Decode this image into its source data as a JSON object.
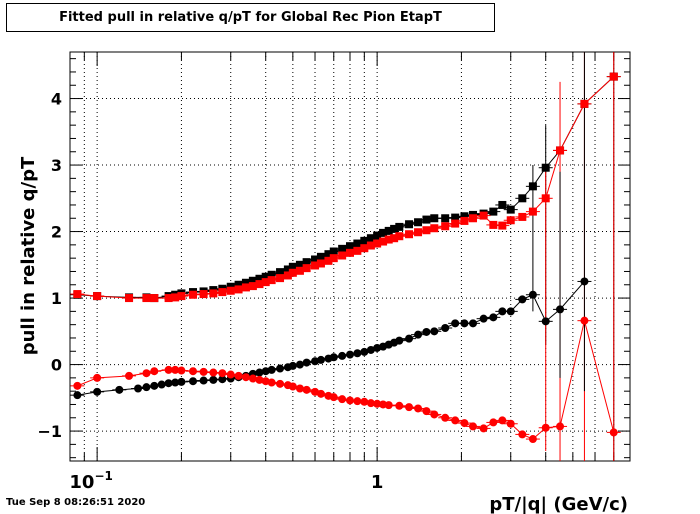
{
  "chart_data": {
    "type": "scatter",
    "title": "Fitted pull in relative q/pT for Global Rec Pion EtapT",
    "xlabel": "pT/|q| (GeV/c)",
    "ylabel": "pull in relative q/pT",
    "xscale": "log",
    "xlim": [
      0.08,
      8.0
    ],
    "ylim": [
      -1.45,
      4.7
    ],
    "grid": true,
    "x_tick_labels": [
      {
        "value": 0.1,
        "base": "10",
        "exp": "−1"
      },
      {
        "value": 1,
        "base": "1",
        "exp": ""
      }
    ],
    "y_ticks": [
      -1,
      0,
      1,
      2,
      3,
      4
    ],
    "y_tick_labels": [
      "−1",
      "0",
      "1",
      "2",
      "3",
      "4"
    ],
    "series": [
      {
        "color": "#000000",
        "marker": "square",
        "points": [
          [
            0.085,
            1.05
          ],
          [
            0.1,
            1.03
          ],
          [
            0.13,
            1.01
          ],
          [
            0.15,
            1.01
          ],
          [
            0.16,
            1.0
          ],
          [
            0.18,
            1.03
          ],
          [
            0.19,
            1.05
          ],
          [
            0.2,
            1.07
          ],
          [
            0.22,
            1.09
          ],
          [
            0.24,
            1.1
          ],
          [
            0.26,
            1.12
          ],
          [
            0.28,
            1.14
          ],
          [
            0.3,
            1.17
          ],
          [
            0.32,
            1.2
          ],
          [
            0.34,
            1.23
          ],
          [
            0.36,
            1.26
          ],
          [
            0.38,
            1.29
          ],
          [
            0.4,
            1.32
          ],
          [
            0.42,
            1.35
          ],
          [
            0.45,
            1.39
          ],
          [
            0.48,
            1.43
          ],
          [
            0.5,
            1.47
          ],
          [
            0.53,
            1.5
          ],
          [
            0.56,
            1.54
          ],
          [
            0.6,
            1.58
          ],
          [
            0.63,
            1.62
          ],
          [
            0.67,
            1.66
          ],
          [
            0.7,
            1.7
          ],
          [
            0.75,
            1.74
          ],
          [
            0.8,
            1.78
          ],
          [
            0.85,
            1.82
          ],
          [
            0.9,
            1.86
          ],
          [
            0.95,
            1.9
          ],
          [
            1.0,
            1.94
          ],
          [
            1.05,
            1.98
          ],
          [
            1.1,
            2.01
          ],
          [
            1.15,
            2.04
          ],
          [
            1.2,
            2.07
          ],
          [
            1.3,
            2.11
          ],
          [
            1.4,
            2.14
          ],
          [
            1.5,
            2.18
          ],
          [
            1.6,
            2.2
          ],
          [
            1.75,
            2.2
          ],
          [
            1.9,
            2.21
          ],
          [
            2.05,
            2.23
          ],
          [
            2.2,
            2.25
          ],
          [
            2.4,
            2.27
          ],
          [
            2.6,
            2.3
          ],
          [
            2.8,
            2.4
          ],
          [
            3.0,
            2.33
          ],
          [
            3.3,
            2.5
          ],
          [
            3.6,
            2.68
          ],
          [
            4.0,
            2.96
          ],
          [
            4.5,
            3.22
          ],
          [
            5.5,
            3.92
          ],
          [
            7.0,
            4.33
          ]
        ]
      },
      {
        "color": "#ff0000",
        "marker": "square",
        "points": [
          [
            0.085,
            1.06
          ],
          [
            0.1,
            1.03
          ],
          [
            0.13,
            1.0
          ],
          [
            0.15,
            1.0
          ],
          [
            0.16,
            1.0
          ],
          [
            0.18,
            1.0
          ],
          [
            0.19,
            1.01
          ],
          [
            0.2,
            1.03
          ],
          [
            0.22,
            1.05
          ],
          [
            0.24,
            1.06
          ],
          [
            0.26,
            1.07
          ],
          [
            0.28,
            1.09
          ],
          [
            0.3,
            1.11
          ],
          [
            0.32,
            1.13
          ],
          [
            0.34,
            1.16
          ],
          [
            0.36,
            1.18
          ],
          [
            0.38,
            1.21
          ],
          [
            0.4,
            1.24
          ],
          [
            0.42,
            1.27
          ],
          [
            0.45,
            1.3
          ],
          [
            0.48,
            1.34
          ],
          [
            0.5,
            1.38
          ],
          [
            0.53,
            1.41
          ],
          [
            0.56,
            1.45
          ],
          [
            0.6,
            1.49
          ],
          [
            0.63,
            1.52
          ],
          [
            0.67,
            1.56
          ],
          [
            0.7,
            1.6
          ],
          [
            0.75,
            1.64
          ],
          [
            0.8,
            1.68
          ],
          [
            0.85,
            1.71
          ],
          [
            0.9,
            1.75
          ],
          [
            0.95,
            1.79
          ],
          [
            1.0,
            1.82
          ],
          [
            1.05,
            1.85
          ],
          [
            1.1,
            1.88
          ],
          [
            1.15,
            1.9
          ],
          [
            1.2,
            1.93
          ],
          [
            1.3,
            1.96
          ],
          [
            1.4,
            1.99
          ],
          [
            1.5,
            2.02
          ],
          [
            1.6,
            2.05
          ],
          [
            1.75,
            2.08
          ],
          [
            1.9,
            2.12
          ],
          [
            2.05,
            2.16
          ],
          [
            2.2,
            2.2
          ],
          [
            2.4,
            2.24
          ],
          [
            2.6,
            2.1
          ],
          [
            2.8,
            2.09
          ],
          [
            3.0,
            2.17
          ],
          [
            3.3,
            2.22
          ],
          [
            3.6,
            2.3
          ],
          [
            4.0,
            2.5
          ],
          [
            4.5,
            3.22
          ],
          [
            5.5,
            3.92
          ],
          [
            7.0,
            4.33
          ]
        ]
      },
      {
        "color": "#000000",
        "marker": "circle",
        "points": [
          [
            0.085,
            -0.46
          ],
          [
            0.1,
            -0.41
          ],
          [
            0.12,
            -0.38
          ],
          [
            0.14,
            -0.36
          ],
          [
            0.15,
            -0.34
          ],
          [
            0.16,
            -0.32
          ],
          [
            0.17,
            -0.3
          ],
          [
            0.18,
            -0.28
          ],
          [
            0.19,
            -0.27
          ],
          [
            0.2,
            -0.26
          ],
          [
            0.22,
            -0.25
          ],
          [
            0.24,
            -0.24
          ],
          [
            0.26,
            -0.23
          ],
          [
            0.28,
            -0.22
          ],
          [
            0.3,
            -0.21
          ],
          [
            0.32,
            -0.19
          ],
          [
            0.34,
            -0.17
          ],
          [
            0.36,
            -0.14
          ],
          [
            0.38,
            -0.12
          ],
          [
            0.4,
            -0.1
          ],
          [
            0.42,
            -0.08
          ],
          [
            0.45,
            -0.06
          ],
          [
            0.48,
            -0.04
          ],
          [
            0.5,
            -0.02
          ],
          [
            0.53,
            0.0
          ],
          [
            0.56,
            0.03
          ],
          [
            0.6,
            0.05
          ],
          [
            0.63,
            0.07
          ],
          [
            0.67,
            0.09
          ],
          [
            0.7,
            0.11
          ],
          [
            0.75,
            0.13
          ],
          [
            0.8,
            0.15
          ],
          [
            0.85,
            0.17
          ],
          [
            0.9,
            0.19
          ],
          [
            0.95,
            0.22
          ],
          [
            1.0,
            0.25
          ],
          [
            1.05,
            0.27
          ],
          [
            1.1,
            0.3
          ],
          [
            1.15,
            0.33
          ],
          [
            1.2,
            0.36
          ],
          [
            1.3,
            0.39
          ],
          [
            1.4,
            0.45
          ],
          [
            1.5,
            0.49
          ],
          [
            1.6,
            0.5
          ],
          [
            1.75,
            0.55
          ],
          [
            1.9,
            0.62
          ],
          [
            2.05,
            0.62
          ],
          [
            2.2,
            0.62
          ],
          [
            2.4,
            0.69
          ],
          [
            2.6,
            0.71
          ],
          [
            2.8,
            0.8
          ],
          [
            3.0,
            0.8
          ],
          [
            3.3,
            0.98
          ],
          [
            3.6,
            1.05
          ],
          [
            4.0,
            0.65
          ],
          [
            4.5,
            0.83
          ],
          [
            5.5,
            1.25
          ]
        ]
      },
      {
        "color": "#ff0000",
        "marker": "circle",
        "points": [
          [
            0.085,
            -0.32
          ],
          [
            0.1,
            -0.2
          ],
          [
            0.13,
            -0.17
          ],
          [
            0.15,
            -0.13
          ],
          [
            0.16,
            -0.1
          ],
          [
            0.18,
            -0.08
          ],
          [
            0.19,
            -0.08
          ],
          [
            0.2,
            -0.09
          ],
          [
            0.22,
            -0.1
          ],
          [
            0.24,
            -0.11
          ],
          [
            0.26,
            -0.12
          ],
          [
            0.28,
            -0.13
          ],
          [
            0.3,
            -0.15
          ],
          [
            0.32,
            -0.17
          ],
          [
            0.34,
            -0.19
          ],
          [
            0.36,
            -0.21
          ],
          [
            0.38,
            -0.23
          ],
          [
            0.4,
            -0.25
          ],
          [
            0.42,
            -0.27
          ],
          [
            0.45,
            -0.29
          ],
          [
            0.48,
            -0.31
          ],
          [
            0.5,
            -0.33
          ],
          [
            0.53,
            -0.36
          ],
          [
            0.56,
            -0.38
          ],
          [
            0.6,
            -0.41
          ],
          [
            0.63,
            -0.44
          ],
          [
            0.67,
            -0.47
          ],
          [
            0.7,
            -0.49
          ],
          [
            0.75,
            -0.52
          ],
          [
            0.8,
            -0.54
          ],
          [
            0.85,
            -0.55
          ],
          [
            0.9,
            -0.56
          ],
          [
            0.95,
            -0.58
          ],
          [
            1.0,
            -0.59
          ],
          [
            1.05,
            -0.6
          ],
          [
            1.1,
            -0.61
          ],
          [
            1.2,
            -0.62
          ],
          [
            1.3,
            -0.64
          ],
          [
            1.4,
            -0.66
          ],
          [
            1.5,
            -0.7
          ],
          [
            1.6,
            -0.75
          ],
          [
            1.75,
            -0.8
          ],
          [
            1.9,
            -0.84
          ],
          [
            2.05,
            -0.88
          ],
          [
            2.2,
            -0.93
          ],
          [
            2.4,
            -0.96
          ],
          [
            2.6,
            -0.87
          ],
          [
            2.8,
            -0.84
          ],
          [
            3.0,
            -0.89
          ],
          [
            3.3,
            -1.05
          ],
          [
            3.6,
            -1.12
          ],
          [
            4.0,
            -0.95
          ],
          [
            4.5,
            -0.93
          ],
          [
            5.5,
            0.66
          ],
          [
            7.0,
            -1.02
          ]
        ]
      }
    ],
    "error_bars": [
      {
        "color": "#000000",
        "x": 7.0,
        "y_low": -1.45,
        "y_high": 4.7
      },
      {
        "color": "#ff0000",
        "x": 7.0,
        "y_low": -1.45,
        "y_high": 4.7
      },
      {
        "color": "#ff0000",
        "x": 5.5,
        "y_low": -1.45,
        "y_high": 4.7
      },
      {
        "color": "#000000",
        "x": 5.5,
        "y_low": -0.4,
        "y_high": 4.7
      },
      {
        "color": "#ff0000",
        "x": 4.5,
        "y_low": -1.45,
        "y_high": 4.25
      },
      {
        "color": "#000000",
        "x": 4.5,
        "y_low": -0.2,
        "y_high": 2.9
      },
      {
        "color": "#000000",
        "x": 4.0,
        "y_low": 0.3,
        "y_high": 3.6
      },
      {
        "color": "#ff0000",
        "x": 4.0,
        "y_low": -1.3,
        "y_high": 2.9
      },
      {
        "color": "#000000",
        "x": 3.6,
        "y_low": 0.8,
        "y_high": 3.0
      }
    ]
  },
  "timestamp": "Tue Sep  8 08:26:51 2020"
}
